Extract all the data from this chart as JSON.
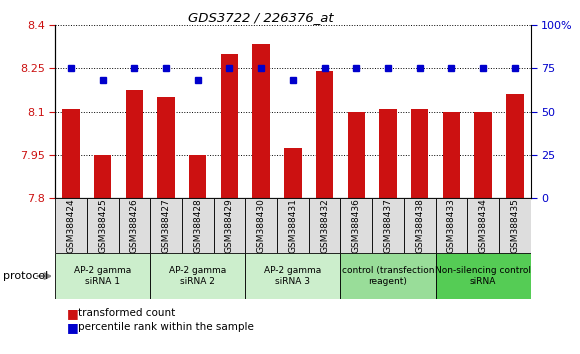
{
  "title": "GDS3722 / 226376_at",
  "samples": [
    "GSM388424",
    "GSM388425",
    "GSM388426",
    "GSM388427",
    "GSM388428",
    "GSM388429",
    "GSM388430",
    "GSM388431",
    "GSM388432",
    "GSM388436",
    "GSM388437",
    "GSM388438",
    "GSM388433",
    "GSM388434",
    "GSM388435"
  ],
  "transformed_count": [
    8.11,
    7.95,
    8.175,
    8.15,
    7.95,
    8.3,
    8.335,
    7.975,
    8.24,
    8.1,
    8.11,
    8.11,
    8.1,
    8.1,
    8.16
  ],
  "percentile_rank": [
    75,
    68,
    75,
    75,
    68,
    75,
    75,
    68,
    75,
    75,
    75,
    75,
    75,
    75,
    75
  ],
  "group_labels": [
    "AP-2 gamma\nsiRNA 1",
    "AP-2 gamma\nsiRNA 2",
    "AP-2 gamma\nsiRNA 3",
    "control (transfection\nreagent)",
    "Non-silencing control\nsiRNA"
  ],
  "group_sizes": [
    3,
    3,
    3,
    3,
    3
  ],
  "group_colors": [
    "#cceecc",
    "#cceecc",
    "#cceecc",
    "#99dd99",
    "#55cc55"
  ],
  "ylim_left": [
    7.8,
    8.4
  ],
  "ylim_right": [
    0,
    100
  ],
  "yticks_left": [
    7.8,
    7.95,
    8.1,
    8.25,
    8.4
  ],
  "yticks_right": [
    0,
    25,
    50,
    75,
    100
  ],
  "bar_color": "#cc1111",
  "dot_color": "#0000cc",
  "legend_bar_label": "transformed count",
  "legend_dot_label": "percentile rank within the sample",
  "protocol_label": "protocol",
  "sample_box_color": "#dddddd"
}
